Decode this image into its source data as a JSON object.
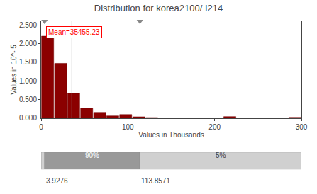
{
  "chart_data": {
    "type": "histogram",
    "title": "Distribution for korea2100/ I214",
    "x_label": "Values in Thousands",
    "y_label": "Values in 10^- 5",
    "bins": [
      0,
      15,
      30,
      45,
      60,
      75,
      90,
      105,
      120,
      135,
      150,
      165,
      180,
      195,
      210,
      225,
      240,
      255,
      270,
      285,
      300
    ],
    "values": [
      2.2,
      1.47,
      0.66,
      0.26,
      0.155,
      0.06,
      0.095,
      0.035,
      0.015,
      0.005,
      0.005,
      0.005,
      0.005,
      0.005,
      0.04,
      0.005,
      0.005,
      0.005,
      0.005,
      0.02
    ],
    "color": "#8B0000",
    "edge_color": "#700000",
    "xlim": [
      0,
      300
    ],
    "xticks": [
      0,
      100,
      200,
      300
    ],
    "ylim": [
      0,
      2.6
    ],
    "yticks": [
      {
        "value": 0.0,
        "label": "0.000"
      },
      {
        "value": 0.5,
        "label": "0.500"
      },
      {
        "value": 1.0,
        "label": "1.000"
      },
      {
        "value": 1.5,
        "label": "1.500"
      },
      {
        "value": 2.0,
        "label": "2.000"
      },
      {
        "value": 2.5,
        "label": "2.500"
      }
    ],
    "grid": false,
    "mean": {
      "x": 35.45523,
      "label": "Mean=35455.23",
      "color": "#999999",
      "text_color": "#ff0000"
    },
    "percentiles": {
      "p5": 3.9276,
      "p95": 113.8571,
      "p5_label": "3.9276",
      "p95_label": "113.8571",
      "middle_label": "90%",
      "right_label": "5%",
      "middle_color": "#999999",
      "outer_color": "#d0d0d0",
      "marker_color": "#888888"
    }
  }
}
